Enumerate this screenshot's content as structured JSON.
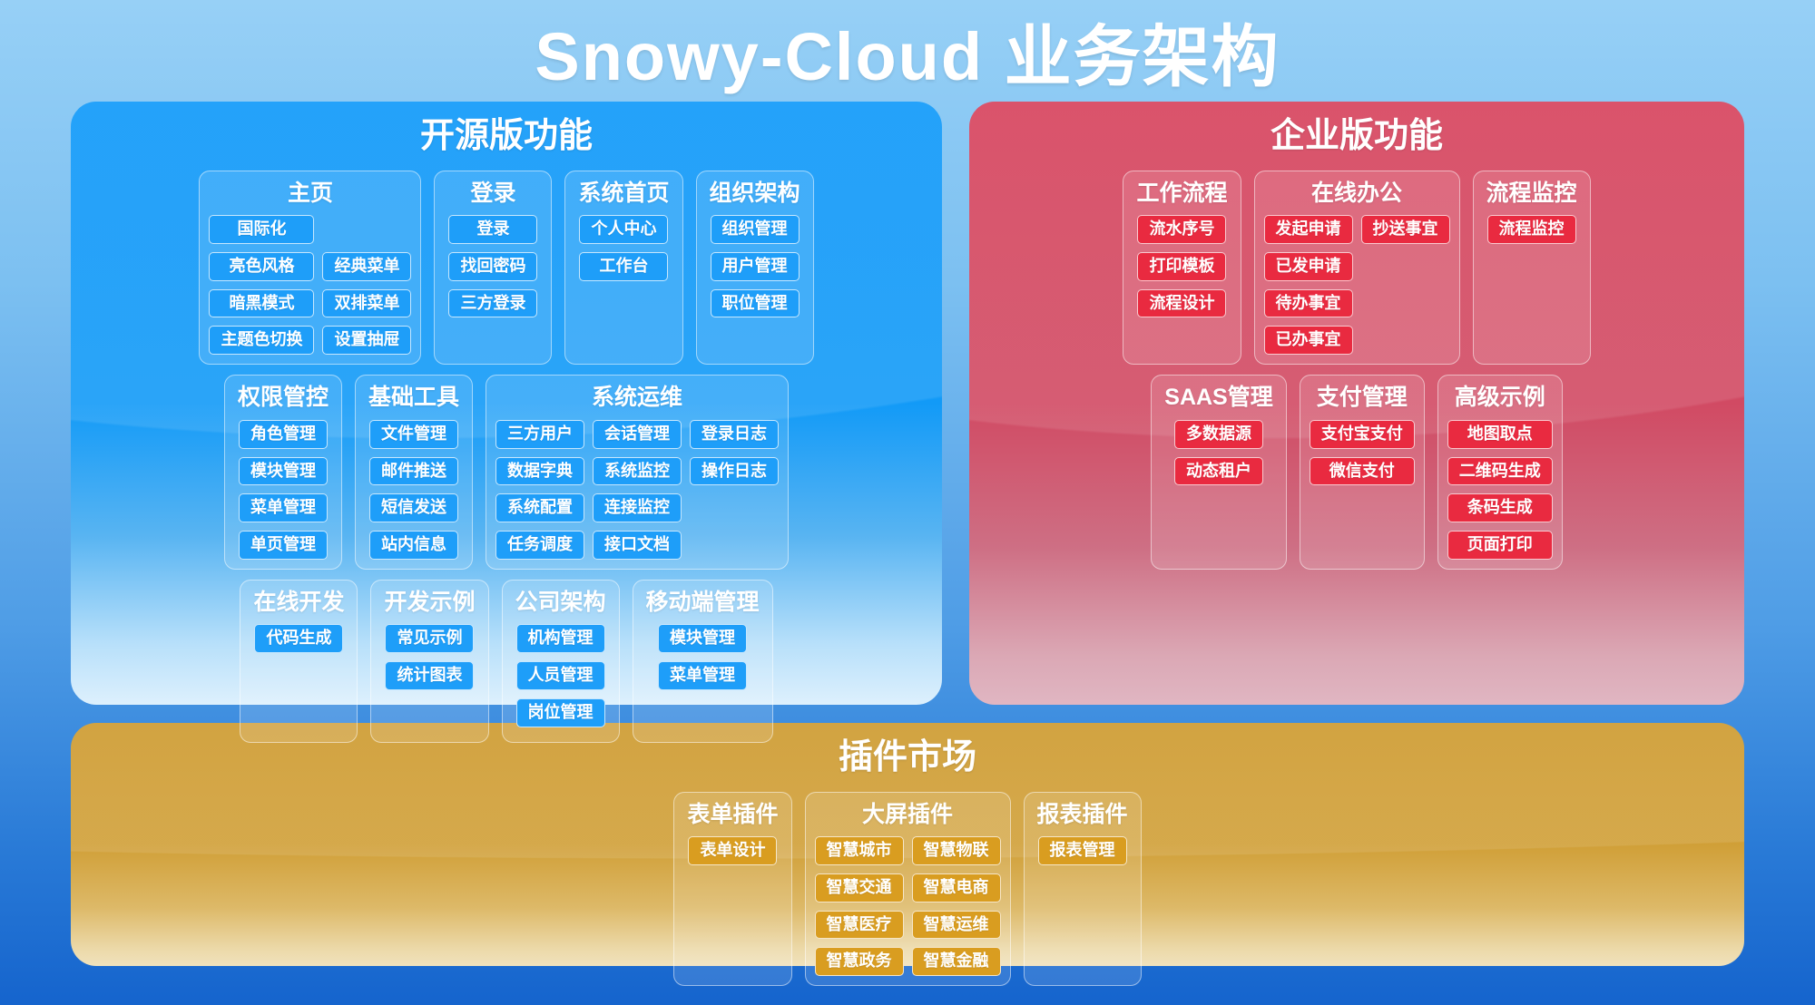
{
  "page": {
    "title": "Snowy-Cloud 业务架构"
  },
  "colors": {
    "background_top": "#97d0f6",
    "background_bottom": "#1564cd",
    "open_source_panel": "#0b97f9",
    "open_source_item": "#1e9ef9",
    "enterprise_panel": "#d6405a",
    "enterprise_item": "#e92a40",
    "plugins_panel": "#cd992c",
    "plugins_item": "#d99d20",
    "text": "#ffffff"
  },
  "sections": {
    "open_source": {
      "title": "开源版功能",
      "rows": [
        [
          {
            "title": "主页",
            "cols": 2,
            "items": [
              "国际化",
              "",
              "亮色风格",
              "经典菜单",
              "暗黑模式",
              "双排菜单",
              "主题色切换",
              "设置抽屉"
            ]
          },
          {
            "title": "登录",
            "cols": 1,
            "items": [
              "登录",
              "找回密码",
              "三方登录"
            ]
          },
          {
            "title": "系统首页",
            "cols": 1,
            "items": [
              "个人中心",
              "工作台"
            ]
          },
          {
            "title": "组织架构",
            "cols": 1,
            "items": [
              "组织管理",
              "用户管理",
              "职位管理"
            ]
          }
        ],
        [
          {
            "title": "权限管控",
            "cols": 1,
            "items": [
              "角色管理",
              "模块管理",
              "菜单管理",
              "单页管理"
            ]
          },
          {
            "title": "基础工具",
            "cols": 1,
            "items": [
              "文件管理",
              "邮件推送",
              "短信发送",
              "站内信息"
            ]
          },
          {
            "title": "系统运维",
            "cols": 3,
            "items": [
              "三方用户",
              "会话管理",
              "登录日志",
              "数据字典",
              "系统监控",
              "操作日志",
              "系统配置",
              "连接监控",
              "",
              "任务调度",
              "接口文档"
            ]
          }
        ],
        [
          {
            "title": "在线开发",
            "cols": 1,
            "items": [
              "代码生成"
            ]
          },
          {
            "title": "开发示例",
            "cols": 1,
            "items": [
              "常见示例",
              "统计图表"
            ]
          },
          {
            "title": "公司架构",
            "cols": 1,
            "items": [
              "机构管理",
              "人员管理",
              "岗位管理"
            ]
          },
          {
            "title": "移动端管理",
            "cols": 1,
            "items": [
              "模块管理",
              "菜单管理"
            ]
          }
        ]
      ]
    },
    "enterprise": {
      "title": "企业版功能",
      "rows": [
        [
          {
            "title": "工作流程",
            "cols": 1,
            "items": [
              "流水序号",
              "打印模板",
              "流程设计"
            ]
          },
          {
            "title": "在线办公",
            "cols": 2,
            "items": [
              "发起申请",
              "抄送事宜",
              "已发申请",
              "",
              "待办事宜",
              "",
              "已办事宜"
            ]
          },
          {
            "title": "流程监控",
            "cols": 1,
            "items": [
              "流程监控"
            ]
          }
        ],
        [
          {
            "title": "SAAS管理",
            "cols": 1,
            "items": [
              "多数据源",
              "动态租户"
            ]
          },
          {
            "title": "支付管理",
            "cols": 1,
            "items": [
              "支付宝支付",
              "微信支付"
            ]
          },
          {
            "title": "高级示例",
            "cols": 1,
            "items": [
              "地图取点",
              "二维码生成",
              "条码生成",
              "页面打印"
            ]
          }
        ]
      ]
    },
    "plugins": {
      "title": "插件市场",
      "rows": [
        [
          {
            "title": "表单插件",
            "cols": 1,
            "items": [
              "表单设计"
            ]
          },
          {
            "title": "大屏插件",
            "cols": 2,
            "items": [
              "智慧城市",
              "智慧物联",
              "智慧交通",
              "智慧电商",
              "智慧医疗",
              "智慧运维",
              "智慧政务",
              "智慧金融"
            ]
          },
          {
            "title": "报表插件",
            "cols": 1,
            "items": [
              "报表管理"
            ]
          }
        ]
      ]
    }
  }
}
